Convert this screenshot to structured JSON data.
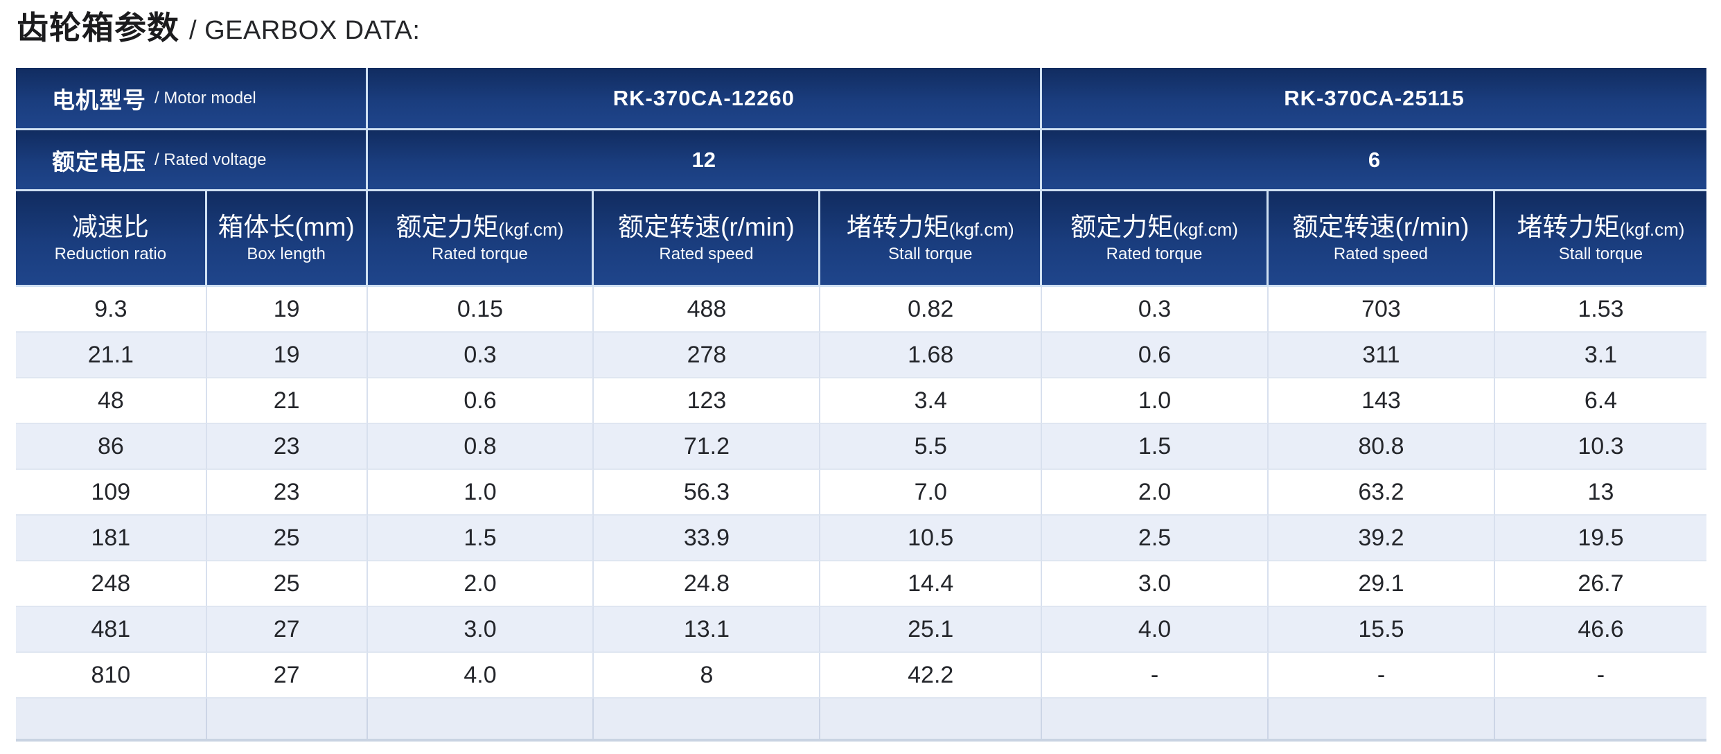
{
  "title": {
    "zh": "齿轮箱参数",
    "en": "/ GEARBOX DATA:"
  },
  "table": {
    "motor_model": {
      "zh": "电机型号",
      "en": "/ Motor model"
    },
    "rated_voltage": {
      "zh": "额定电压",
      "en": "/ Rated voltage"
    },
    "models": [
      {
        "name": "RK-370CA-12260",
        "voltage": "12"
      },
      {
        "name": "RK-370CA-25115",
        "voltage": "6"
      }
    ],
    "columns": [
      {
        "zh": "减速比",
        "unit": "",
        "unit_style": "none",
        "en": "Reduction ratio"
      },
      {
        "zh": "箱体长",
        "unit": "(mm)",
        "unit_style": "large",
        "en": "Box length"
      },
      {
        "zh": "额定力矩",
        "unit": "(kgf.cm)",
        "unit_style": "small",
        "en": "Rated torque"
      },
      {
        "zh": "额定转速",
        "unit": "(r/min)",
        "unit_style": "large",
        "en": "Rated speed"
      },
      {
        "zh": "堵转力矩",
        "unit": "(kgf.cm)",
        "unit_style": "small",
        "en": "Stall torque"
      },
      {
        "zh": "额定力矩",
        "unit": "(kgf.cm)",
        "unit_style": "small",
        "en": "Rated torque"
      },
      {
        "zh": "额定转速",
        "unit": "(r/min)",
        "unit_style": "large",
        "en": "Rated speed"
      },
      {
        "zh": "堵转力矩",
        "unit": "(kgf.cm)",
        "unit_style": "small",
        "en": "Stall torque"
      }
    ],
    "rows": [
      [
        "9.3",
        "19",
        "0.15",
        "488",
        "0.82",
        "0.3",
        "703",
        "1.53"
      ],
      [
        "21.1",
        "19",
        "0.3",
        "278",
        "1.68",
        "0.6",
        "311",
        "3.1"
      ],
      [
        "48",
        "21",
        "0.6",
        "123",
        "3.4",
        "1.0",
        "143",
        "6.4"
      ],
      [
        "86",
        "23",
        "0.8",
        "71.2",
        "5.5",
        "1.5",
        "80.8",
        "10.3"
      ],
      [
        "109",
        "23",
        "1.0",
        "56.3",
        "7.0",
        "2.0",
        "63.2",
        "13"
      ],
      [
        "181",
        "25",
        "1.5",
        "33.9",
        "10.5",
        "2.5",
        "39.2",
        "19.5"
      ],
      [
        "248",
        "25",
        "2.0",
        "24.8",
        "14.4",
        "3.0",
        "29.1",
        "26.7"
      ],
      [
        "481",
        "27",
        "3.0",
        "13.1",
        "25.1",
        "4.0",
        "15.5",
        "46.6"
      ],
      [
        "810",
        "27",
        "4.0",
        "8",
        "42.2",
        "-",
        "-",
        "-"
      ]
    ]
  },
  "colors": {
    "header_navy_top": "#112c60",
    "header_navy_bottom": "#1f458b",
    "header_divider": "#cfe0f2",
    "row_alt": "#e9eef8",
    "row_white": "#ffffff",
    "grid_line": "#d8e0ee",
    "table_bottom_edge": "#c9d3e2",
    "text_dark": "#24262b",
    "text_white": "#ffffff"
  }
}
